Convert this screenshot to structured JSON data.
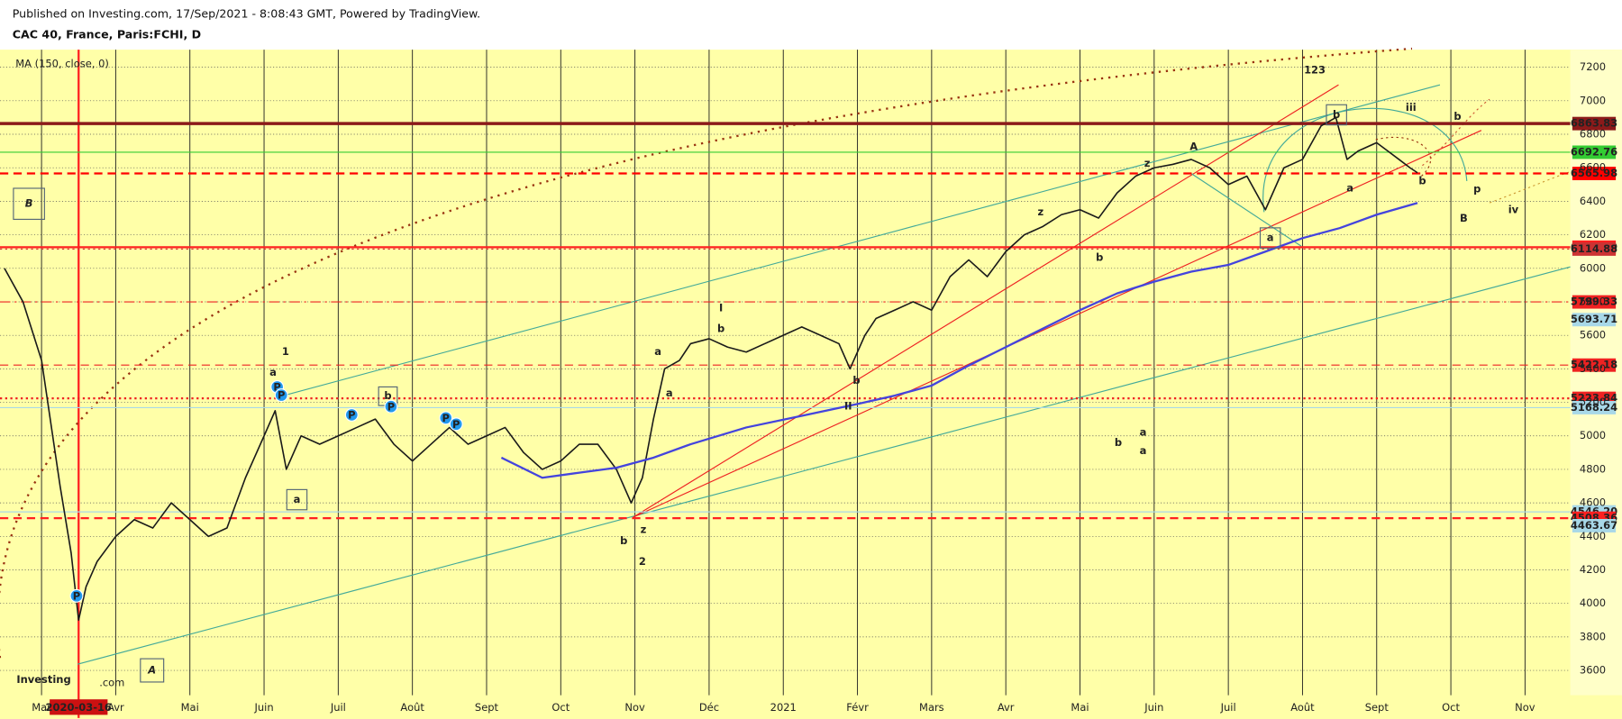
{
  "chart_data": {
    "type": "line",
    "subtitle": "Published on Investing.com, 17/Sep/2021 - 8:08:43 GMT, Powered by TradingView.",
    "title": "CAC 40, France, Paris:FCHI, D",
    "indicator_label": "MA (150, close, 0)",
    "watermark": "Investing",
    "watermark_suffix": ".com",
    "series": [
      {
        "name": "CAC 40",
        "color": "#1a1a1a",
        "x": [
          2.5,
          2.75,
          3.0,
          3.25,
          3.4,
          3.5,
          3.6,
          3.75,
          4.0,
          4.25,
          4.5,
          4.75,
          5.0,
          5.25,
          5.5,
          5.75,
          6.0,
          6.15,
          6.3,
          6.5,
          6.75,
          7.0,
          7.25,
          7.5,
          7.75,
          8.0,
          8.25,
          8.5,
          8.75,
          9.0,
          9.25,
          9.5,
          9.75,
          10.0,
          10.25,
          10.5,
          10.75,
          10.95,
          11.1,
          11.25,
          11.4,
          11.6,
          11.75,
          12.0,
          12.25,
          12.5,
          12.75,
          13.0,
          13.25,
          13.5,
          13.75,
          13.9,
          14.1,
          14.25,
          14.5,
          14.75,
          15.0,
          15.25,
          15.5,
          15.75,
          16.0,
          16.25,
          16.5,
          16.75,
          17.0,
          17.25,
          17.5,
          17.75,
          18.0,
          18.25,
          18.5,
          18.75,
          19.0,
          19.25,
          19.5,
          19.75,
          20.0,
          20.25,
          20.45,
          20.6,
          20.75,
          21.0,
          21.15,
          21.3,
          21.45,
          21.55
        ],
        "values": [
          6000,
          5800,
          5450,
          4700,
          4300,
          3900,
          4100,
          4250,
          4400,
          4500,
          4450,
          4600,
          4500,
          4400,
          4450,
          4750,
          5000,
          5150,
          4800,
          5000,
          4950,
          5000,
          5050,
          5100,
          4950,
          4850,
          4950,
          5050,
          4950,
          5000,
          5050,
          4900,
          4800,
          4850,
          4950,
          4950,
          4800,
          4600,
          4750,
          5100,
          5400,
          5450,
          5550,
          5580,
          5530,
          5500,
          5550,
          5600,
          5650,
          5600,
          5550,
          5400,
          5600,
          5700,
          5750,
          5800,
          5750,
          5950,
          6050,
          5950,
          6100,
          6200,
          6250,
          6320,
          6350,
          6300,
          6450,
          6550,
          6600,
          6620,
          6650,
          6600,
          6500,
          6550,
          6350,
          6600,
          6650,
          6850,
          6900,
          6650,
          6700,
          6750,
          6700,
          6650,
          6600,
          6570
        ]
      },
      {
        "name": "MA (150, close, 0)",
        "color": "#4444dd",
        "x": [
          9.2,
          9.75,
          10.25,
          10.75,
          11.25,
          11.75,
          12.5,
          13.25,
          14.0,
          14.5,
          15.0,
          15.5,
          16.0,
          16.5,
          17.0,
          17.5,
          18.0,
          18.5,
          19.0,
          19.5,
          20.0,
          20.5,
          21.0,
          21.55
        ],
        "values": [
          4870,
          4750,
          4780,
          4810,
          4870,
          4950,
          5050,
          5120,
          5190,
          5240,
          5300,
          5420,
          5530,
          5640,
          5750,
          5850,
          5920,
          5980,
          6020,
          6100,
          6180,
          6240,
          6320,
          6390
        ]
      }
    ],
    "xlim": [
      2.44,
      23.61
    ],
    "xticks": [
      {
        "value": 3,
        "label": "Mar"
      },
      {
        "value": 4,
        "label": "Avr"
      },
      {
        "value": 5,
        "label": "Mai"
      },
      {
        "value": 6,
        "label": "Juin"
      },
      {
        "value": 7,
        "label": "Juil"
      },
      {
        "value": 8,
        "label": "Août"
      },
      {
        "value": 9,
        "label": "Sept"
      },
      {
        "value": 10,
        "label": "Oct"
      },
      {
        "value": 11,
        "label": "Nov"
      },
      {
        "value": 12,
        "label": "Déc"
      },
      {
        "value": 13,
        "label": "2021"
      },
      {
        "value": 14,
        "label": "Févr"
      },
      {
        "value": 15,
        "label": "Mars"
      },
      {
        "value": 16,
        "label": "Avr"
      },
      {
        "value": 17,
        "label": "Mai"
      },
      {
        "value": 18,
        "label": "Juin"
      },
      {
        "value": 19,
        "label": "Juil"
      },
      {
        "value": 20,
        "label": "Août"
      },
      {
        "value": 21,
        "label": "Sept"
      },
      {
        "value": 22,
        "label": "Oct"
      },
      {
        "value": 23,
        "label": "Nov"
      }
    ],
    "crosshair": {
      "value": 3.5,
      "label": "2020-03-16",
      "color": "#ff2020"
    },
    "ylim": [
      3452,
      7305
    ],
    "yticks": [
      3600,
      3800,
      4000,
      4200,
      4400,
      4600,
      4800,
      5000,
      5200,
      5400,
      5600,
      5800,
      6000,
      6200,
      6400,
      6600,
      6800,
      7000,
      7200
    ],
    "grid": true,
    "levels": [
      {
        "value": 6863.83,
        "color": "#8b1a1a",
        "text_color": "#ffffff",
        "dash": "solid",
        "width": 3
      },
      {
        "value": 6692.76,
        "color": "#33cc33",
        "text_color": "#ffffff",
        "dash": "solid",
        "width": 1
      },
      {
        "value": 6565.98,
        "color": "#ff0000",
        "text_color": "#ffffff",
        "dash": "dashed",
        "width": 2
      },
      {
        "value": 6125.99,
        "color": "#ff2020",
        "text_color": "#ffffff",
        "dash": "solid",
        "width": 2
      },
      {
        "value": 6114.88,
        "color": "#cc3333",
        "text_color": "#ffffff",
        "dash": "dotted",
        "width": 1
      },
      {
        "value": 5799.33,
        "color": "#ee2222",
        "text_color": "#ffffff",
        "dash": "dashdot",
        "width": 1
      },
      {
        "value": 5693.71,
        "color": "#a8d8e8",
        "text_color": "#333333",
        "dash": "solid",
        "width": 0
      },
      {
        "value": 5422.18,
        "color": "#ee2222",
        "text_color": "#ffffff",
        "dash": "dashed",
        "width": 1
      },
      {
        "value": 5223.84,
        "color": "#ee2222",
        "text_color": "#ffffff",
        "dash": "dotted",
        "width": 2
      },
      {
        "value": 5168.24,
        "color": "#a8d8e8",
        "text_color": "#333333",
        "dash": "solid",
        "width": 1
      },
      {
        "value": 4546.2,
        "label": "4546.20",
        "color": "#a8d8e8",
        "text_color": "#333333",
        "dash": "solid",
        "width": 1
      },
      {
        "value": 4508.36,
        "color": "#ff2020",
        "text_color": "#ffffff",
        "dash": "dashed",
        "width": 2
      },
      {
        "value": 4463.67,
        "color": "#a8d8e8",
        "text_color": "#333333",
        "dash": "solid",
        "width": 0
      }
    ],
    "annotations": [
      {
        "text": "1",
        "color": "#000000"
      },
      {
        "text": "a",
        "color": "#ee1111"
      },
      {
        "text": "a",
        "color": "#336699",
        "boxed": true
      },
      {
        "text": "b",
        "color": "#336699",
        "boxed": true
      },
      {
        "text": "b",
        "color": "#ee1111"
      },
      {
        "text": "2",
        "color": "#000000"
      },
      {
        "text": "a",
        "color": "#ee1111"
      },
      {
        "text": "I",
        "color": "#667799"
      },
      {
        "text": "b",
        "color": "#333333"
      },
      {
        "text": "b",
        "color": "#ee1111"
      },
      {
        "text": "II",
        "color": "#667799"
      },
      {
        "text": "z",
        "color": "#333333"
      },
      {
        "text": "z",
        "color": "#336666"
      },
      {
        "text": "z",
        "color": "#333333"
      },
      {
        "text": "b",
        "color": "#337777"
      },
      {
        "text": "A",
        "color": "#8b1a1a"
      },
      {
        "text": "a",
        "color": "#ee1111",
        "boxed": true
      },
      {
        "text": "a",
        "color": "#8b1a1a"
      },
      {
        "text": "b",
        "color": "#ee1111",
        "boxed": true
      },
      {
        "text": "123",
        "color": "#2222cc"
      },
      {
        "text": "iii",
        "color": "#8899aa"
      },
      {
        "text": "b",
        "color": "#994422"
      },
      {
        "text": "b",
        "color": "#ee1111"
      },
      {
        "text": "p",
        "color": "#000000"
      },
      {
        "text": "B",
        "color": "#8b1a1a"
      },
      {
        "text": "iv",
        "color": "#8899aa"
      },
      {
        "text": "B",
        "color": "#ee1111",
        "boxed": true
      },
      {
        "text": "A",
        "color": "#cc2222",
        "boxed": true
      },
      {
        "text": "a",
        "color": "#557799"
      },
      {
        "text": "b",
        "color": "#557799"
      },
      {
        "text": "a",
        "color": "#557799"
      },
      {
        "text": "a",
        "color": "#333333"
      }
    ],
    "signal_markers": [
      "P",
      "P",
      "P",
      "P",
      "P",
      "P",
      "P"
    ]
  }
}
